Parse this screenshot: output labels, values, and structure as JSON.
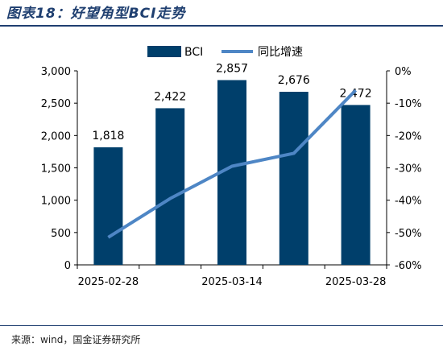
{
  "header": {
    "title": "图表18：好望角型BCI走势"
  },
  "footer": {
    "source": "来源：wind，国金证券研究所"
  },
  "colors": {
    "bar": "#003f6b",
    "line": "#4e86c5",
    "title": "#1f3f70"
  },
  "chart_data": {
    "type": "bar+line",
    "legend": [
      {
        "name": "BCI",
        "kind": "bar"
      },
      {
        "name": "同比增速",
        "kind": "line"
      }
    ],
    "legend_position": "top",
    "x_tick_labels": [
      "2025-02-28",
      "2025-03-14",
      "2025-03-28"
    ],
    "bars": {
      "name": "BCI",
      "values": [
        1818,
        2422,
        2857,
        2676,
        2472
      ],
      "labels": [
        "1,818",
        "2,422",
        "2,857",
        "2,676",
        "2,472"
      ]
    },
    "line": {
      "name": "同比增速",
      "axis": "right",
      "values": [
        -51.5,
        -39.5,
        -29.5,
        -25.5,
        -6
      ]
    },
    "y_left": {
      "min": 0,
      "max": 3000,
      "step": 500,
      "ticks": [
        "0",
        "500",
        "1,000",
        "1,500",
        "2,000",
        "2,500",
        "3,000"
      ]
    },
    "y_right": {
      "min": -60,
      "max": 0,
      "step": 10,
      "ticks": [
        "-60%",
        "-50%",
        "-40%",
        "-30%",
        "-20%",
        "-10%",
        "0%"
      ]
    },
    "grid": false
  }
}
